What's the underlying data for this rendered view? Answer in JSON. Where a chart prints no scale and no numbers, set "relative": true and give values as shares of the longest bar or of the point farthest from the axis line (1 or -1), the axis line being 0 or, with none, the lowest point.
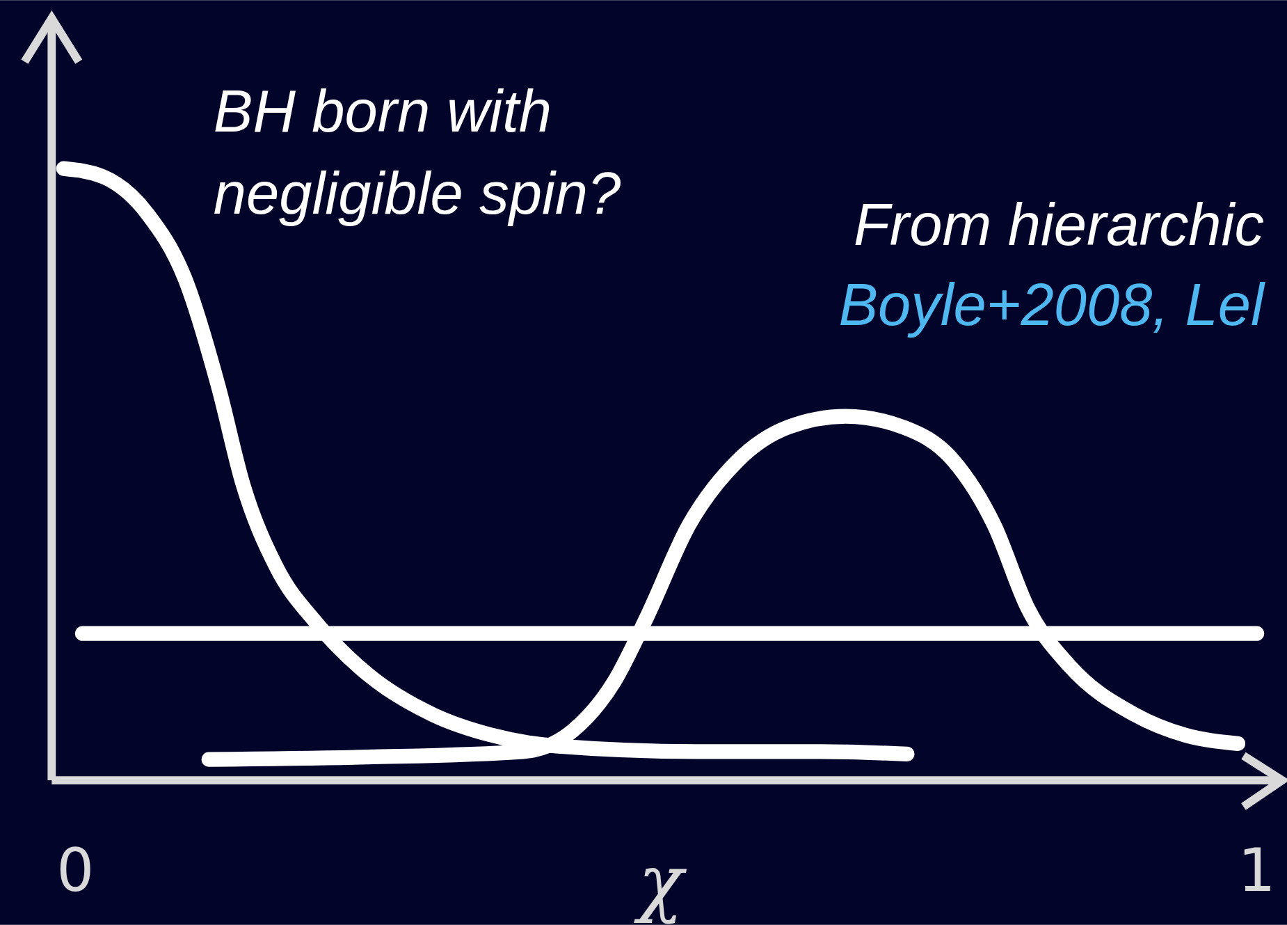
{
  "chart_data": {
    "type": "line",
    "relative": true,
    "xlabel": "χ",
    "xlim": [
      -0.02,
      1.02
    ],
    "xticks": [
      0,
      1
    ],
    "line_style": "solid",
    "annotations": [
      "BH born with negligible spin?",
      "From hierarchic",
      "Boyle+2008, Lel"
    ],
    "series": [
      {
        "color": "#ffffff",
        "x": [
          -0.01,
          0.023,
          0.061,
          0.093,
          0.121,
          0.142,
          0.17,
          0.205,
          0.247,
          0.303,
          0.352,
          0.407,
          0.526,
          0.631,
          0.704
        ],
        "values": [
          1,
          0.987,
          0.926,
          0.819,
          0.644,
          0.483,
          0.349,
          0.255,
          0.174,
          0.107,
          0.074,
          0.056,
          0.047,
          0.047,
          0.043
        ]
      },
      {
        "color": "#ffffff",
        "x": [
          0.113,
          0.247,
          0.379,
          0.421,
          0.456,
          0.484,
          0.519,
          0.561,
          0.603,
          0.652,
          0.701,
          0.743,
          0.778,
          0.806,
          0.841,
          0.897,
          0.939,
          0.984
        ],
        "values": [
          0.034,
          0.038,
          0.047,
          0.081,
          0.161,
          0.268,
          0.416,
          0.523,
          0.577,
          0.595,
          0.577,
          0.523,
          0.416,
          0.282,
          0.188,
          0.107,
          0.074,
          0.06
        ]
      },
      {
        "color": "#ffffff",
        "x": [
          0.006,
          1.0
        ],
        "values": [
          0.24,
          0.24
        ]
      }
    ]
  }
}
